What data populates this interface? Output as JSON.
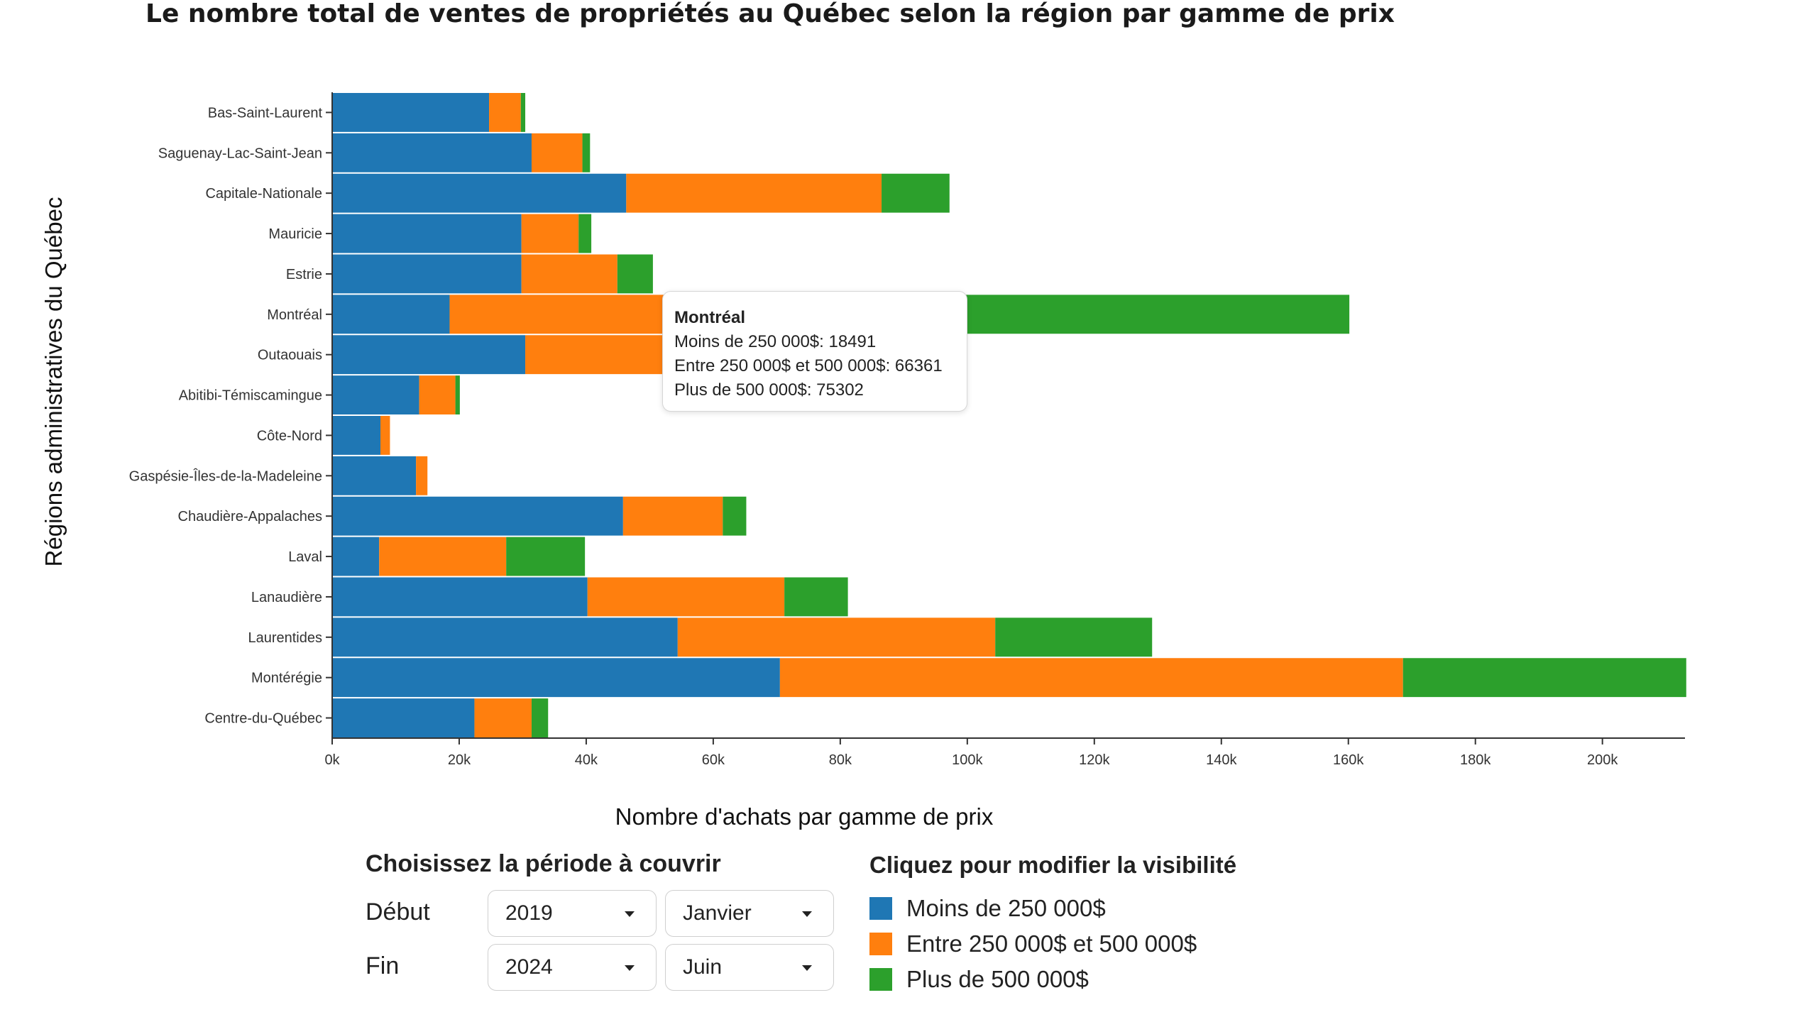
{
  "title": "Le nombre total de ventes de propriétés au Québec selon la région par gamme de prix",
  "chart_data": {
    "type": "bar",
    "orientation": "horizontal",
    "stacked": true,
    "title": "Le nombre total de ventes de propriétés au Québec selon la région par gamme de prix",
    "xlabel": "Nombre d'achats par gamme de prix",
    "ylabel": "Régions administratives du Québec",
    "xlim": [
      0,
      213000
    ],
    "xticks": [
      0,
      20000,
      40000,
      60000,
      80000,
      100000,
      120000,
      140000,
      160000,
      180000,
      200000
    ],
    "xtick_labels": [
      "0k",
      "20k",
      "40k",
      "60k",
      "80k",
      "100k",
      "120k",
      "140k",
      "160k",
      "180k",
      "200k"
    ],
    "grid": false,
    "categories": [
      "Bas-Saint-Laurent",
      "Saguenay-Lac-Saint-Jean",
      "Capitale-Nationale",
      "Mauricie",
      "Estrie",
      "Montréal",
      "Outaouais",
      "Abitibi-Témiscamingue",
      "Côte-Nord",
      "Gaspésie-Îles-de-la-Madeleine",
      "Chaudière-Appalaches",
      "Laval",
      "Lanaudière",
      "Laurentides",
      "Montérégie",
      "Centre-du-Québec"
    ],
    "series": [
      {
        "name": "Moins de 250 000$",
        "color": "#1f77b4",
        "values": [
          24700,
          31400,
          46300,
          29800,
          29800,
          18491,
          30400,
          13700,
          7600,
          13200,
          45800,
          7400,
          40200,
          54400,
          70500,
          22400
        ]
      },
      {
        "name": "Entre 250 000$ et 500 000$",
        "color": "#ff7f0e",
        "values": [
          5000,
          8000,
          40200,
          9000,
          15100,
          66361,
          23400,
          5700,
          1500,
          1800,
          15700,
          20000,
          31000,
          50000,
          98100,
          9000
        ]
      },
      {
        "name": "Plus de 500 000$",
        "color": "#2ca02c",
        "values": [
          700,
          1200,
          10700,
          2000,
          5600,
          75302,
          2200,
          700,
          0,
          0,
          3700,
          12400,
          10000,
          24700,
          44600,
          2600
        ]
      }
    ]
  },
  "tooltip": {
    "region": "Montréal",
    "line1": "Moins de 250 000$: 18491",
    "line2": "Entre 250 000$ et 500 000$: 66361",
    "line3": "Plus de 500 000$: 75302"
  },
  "period": {
    "title": "Choisissez la période à couvrir",
    "start_label": "Début",
    "end_label": "Fin",
    "start_year": "2019",
    "start_month": "Janvier",
    "end_year": "2024",
    "end_month": "Juin"
  },
  "legend": {
    "title": "Cliquez pour modifier la visibilité",
    "items": [
      {
        "label": "Moins de 250 000$",
        "color": "#1f77b4"
      },
      {
        "label": "Entre 250 000$ et 500 000$",
        "color": "#ff7f0e"
      },
      {
        "label": "Plus de 500 000$",
        "color": "#2ca02c"
      }
    ]
  }
}
